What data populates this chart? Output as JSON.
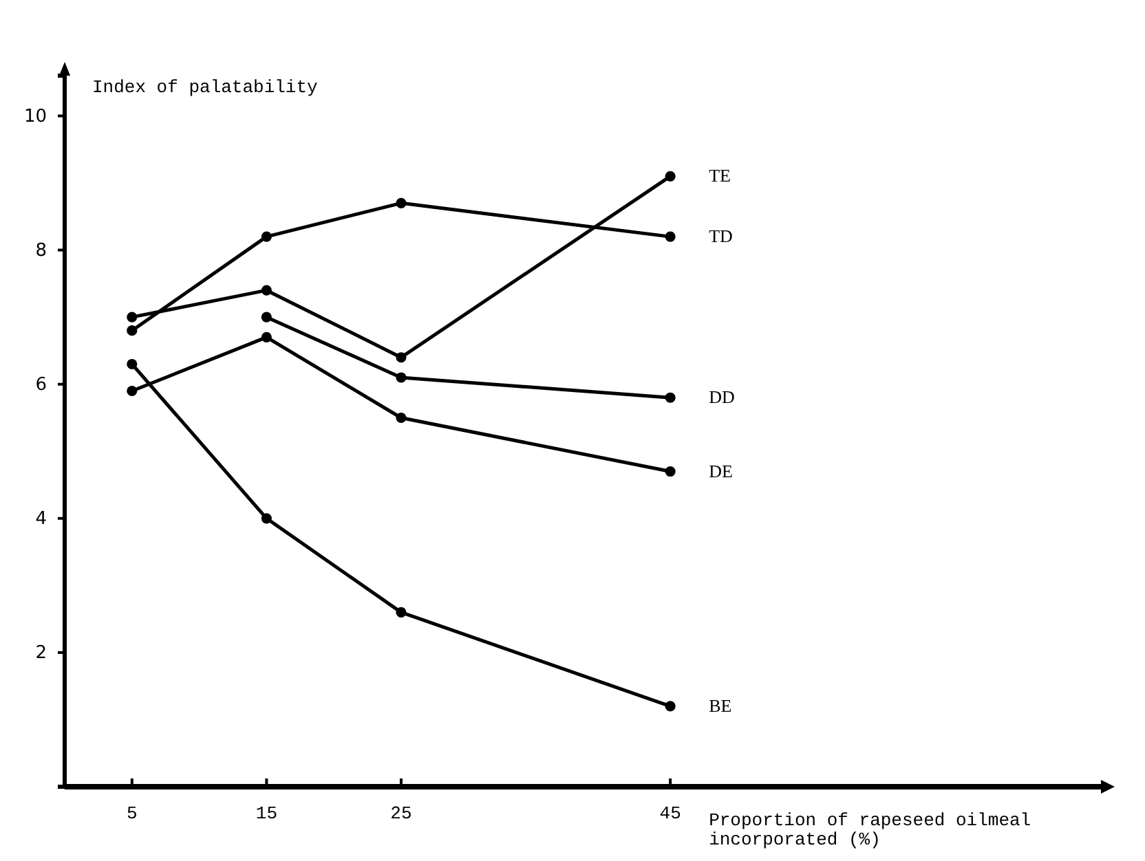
{
  "chart_data": {
    "type": "line",
    "ylabel": "Index of palatability",
    "xlabel": "Proportion of rapeseed oilmeal incorporated (%)",
    "x": [
      5,
      15,
      25,
      45
    ],
    "xlim": [
      0,
      77
    ],
    "xticks": [
      5,
      15,
      25,
      45
    ],
    "ylim": [
      0,
      10.6
    ],
    "yticks": [
      2,
      4,
      6,
      8,
      10
    ],
    "grid": false,
    "marker": "circle",
    "line_style": "solid",
    "series": [
      {
        "name": "TE",
        "color": "#000000",
        "values": [
          7.0,
          7.4,
          6.4,
          9.1
        ]
      },
      {
        "name": "TD",
        "color": "#000000",
        "values": [
          6.8,
          8.2,
          8.7,
          8.2
        ]
      },
      {
        "name": "DD",
        "color": "#000000",
        "values": [
          null,
          7.0,
          6.1,
          5.8
        ]
      },
      {
        "name": "DE",
        "color": "#000000",
        "values": [
          5.9,
          6.7,
          5.5,
          4.7
        ]
      },
      {
        "name": "BE",
        "color": "#000000",
        "values": [
          6.3,
          4.0,
          2.6,
          1.2
        ]
      }
    ]
  }
}
